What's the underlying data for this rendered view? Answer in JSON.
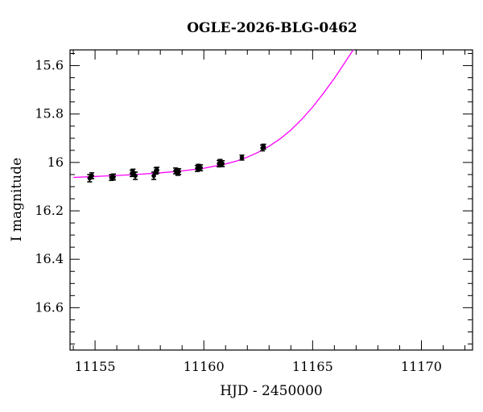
{
  "chart_data": {
    "type": "scatter",
    "title": "OGLE-2026-BLG-0462",
    "xlabel": "HJD - 2450000",
    "ylabel": "I magnitude",
    "xlim": [
      11153.85,
      11172.35
    ],
    "ylim": [
      16.775,
      15.535
    ],
    "y_inverted": true,
    "grid": false,
    "x_major_ticks": [
      11155,
      11160,
      11165,
      11170
    ],
    "y_major_ticks": [
      15.6,
      15.8,
      16.0,
      16.2,
      16.4,
      16.6
    ],
    "x_tick_labels": [
      "11155",
      "11160",
      "11165",
      "11170"
    ],
    "y_tick_labels": [
      "15.6",
      "15.8",
      "16",
      "16.2",
      "16.4",
      "16.6"
    ],
    "points": [
      {
        "x": 11154.75,
        "y": 16.065,
        "err": 0.015
      },
      {
        "x": 11154.85,
        "y": 16.055,
        "err": 0.012
      },
      {
        "x": 11155.75,
        "y": 16.062,
        "err": 0.012
      },
      {
        "x": 11155.85,
        "y": 16.06,
        "err": 0.012
      },
      {
        "x": 11156.7,
        "y": 16.045,
        "err": 0.013
      },
      {
        "x": 11156.75,
        "y": 16.04,
        "err": 0.012
      },
      {
        "x": 11156.85,
        "y": 16.055,
        "err": 0.015
      },
      {
        "x": 11157.7,
        "y": 16.055,
        "err": 0.015
      },
      {
        "x": 11157.8,
        "y": 16.035,
        "err": 0.013
      },
      {
        "x": 11157.85,
        "y": 16.032,
        "err": 0.012
      },
      {
        "x": 11158.7,
        "y": 16.035,
        "err": 0.012
      },
      {
        "x": 11158.8,
        "y": 16.04,
        "err": 0.013
      },
      {
        "x": 11158.85,
        "y": 16.038,
        "err": 0.012
      },
      {
        "x": 11159.7,
        "y": 16.025,
        "err": 0.012
      },
      {
        "x": 11159.75,
        "y": 16.02,
        "err": 0.012
      },
      {
        "x": 11159.85,
        "y": 16.022,
        "err": 0.012
      },
      {
        "x": 11160.7,
        "y": 16.005,
        "err": 0.013
      },
      {
        "x": 11160.75,
        "y": 16.0,
        "err": 0.012
      },
      {
        "x": 11160.85,
        "y": 16.005,
        "err": 0.012
      },
      {
        "x": 11161.75,
        "y": 15.98,
        "err": 0.01
      },
      {
        "x": 11162.7,
        "y": 15.94,
        "err": 0.012
      },
      {
        "x": 11162.75,
        "y": 15.935,
        "err": 0.01
      }
    ],
    "model_curve": {
      "x": [
        11154.0,
        11155.0,
        11156.0,
        11157.0,
        11158.0,
        11159.0,
        11160.0,
        11161.0,
        11161.5,
        11162.0,
        11162.5,
        11163.0,
        11163.5,
        11164.0,
        11164.5,
        11165.0,
        11165.5,
        11166.0,
        11166.5,
        11166.95
      ],
      "y": [
        16.062,
        16.058,
        16.054,
        16.049,
        16.043,
        16.035,
        16.024,
        16.006,
        15.994,
        15.978,
        15.958,
        15.933,
        15.903,
        15.866,
        15.822,
        15.771,
        15.714,
        15.652,
        15.585,
        15.523
      ]
    },
    "colors": {
      "points": "#000000",
      "model": "#ff00ff",
      "axes": "#000000"
    }
  }
}
